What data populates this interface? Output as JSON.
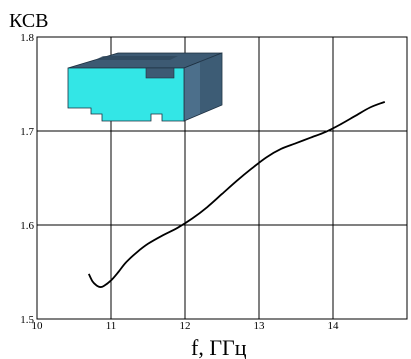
{
  "chart_data": {
    "type": "line",
    "ylabel": "КСВ",
    "xlabel": "f, ГГц",
    "xlim": [
      10,
      15
    ],
    "ylim": [
      1.5,
      1.8
    ],
    "grid": true,
    "xticks": [
      {
        "value": 10,
        "label": "10"
      },
      {
        "value": 11,
        "label": "11"
      },
      {
        "value": 12,
        "label": "12"
      },
      {
        "value": 13,
        "label": "13"
      },
      {
        "value": 14,
        "label": "14"
      }
    ],
    "yticks": [
      {
        "value": 1.5,
        "label": "1.5"
      },
      {
        "value": 1.6,
        "label": "1.6"
      },
      {
        "value": 1.7,
        "label": "1.7"
      },
      {
        "value": 1.8,
        "label": "1.8"
      }
    ],
    "series": [
      {
        "color": "#000000",
        "x": [
          10.7,
          10.75,
          10.8,
          10.85,
          10.9,
          11.0,
          11.1,
          11.2,
          11.35,
          11.5,
          11.7,
          11.9,
          12.1,
          12.3,
          12.5,
          12.7,
          12.9,
          13.1,
          13.3,
          13.5,
          13.7,
          13.9,
          14.1,
          14.3,
          14.5,
          14.7
        ],
        "y": [
          1.548,
          1.54,
          1.536,
          1.534,
          1.535,
          1.541,
          1.55,
          1.56,
          1.571,
          1.58,
          1.589,
          1.597,
          1.607,
          1.619,
          1.633,
          1.647,
          1.66,
          1.672,
          1.681,
          1.687,
          1.693,
          1.699,
          1.707,
          1.716,
          1.725,
          1.731
        ]
      }
    ]
  },
  "inset": {
    "icon": "waveguide-3d-model-icon",
    "colors": {
      "front": "#33e6e6",
      "top": "#3d5a73",
      "side": "#4c6f8b",
      "dark": "#2c445a"
    }
  }
}
